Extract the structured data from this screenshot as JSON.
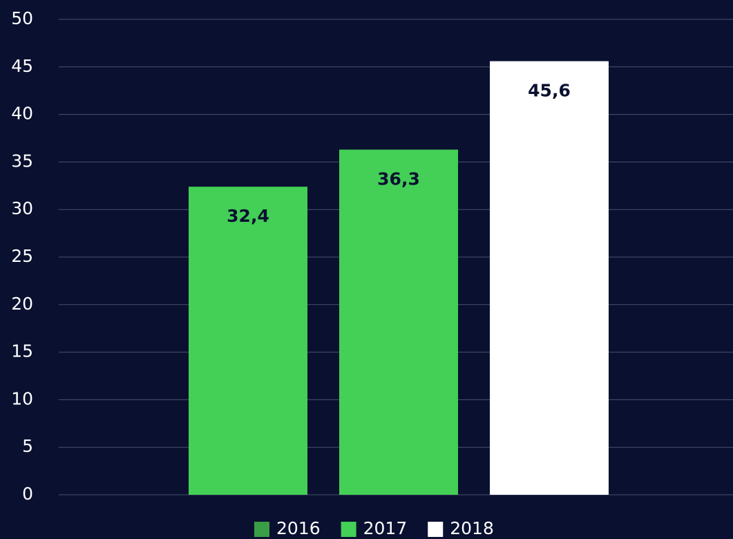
{
  "chart_data": {
    "type": "bar",
    "categories": [
      null,
      null,
      null
    ],
    "values": [
      32.4,
      36.3,
      45.6
    ],
    "value_labels": [
      "32,4",
      "36,3",
      "45,6"
    ],
    "colors": [
      "#44cf56",
      "#44cf56",
      "#ffffff"
    ],
    "legend": [
      {
        "name": "2016",
        "color": "#3a9e46"
      },
      {
        "name": "2017",
        "color": "#44cf56"
      },
      {
        "name": "2018",
        "color": "#ffffff"
      }
    ],
    "ylim": [
      0,
      50
    ],
    "yticks": [
      0,
      5,
      10,
      15,
      20,
      25,
      30,
      35,
      40,
      45,
      50
    ],
    "grid": true,
    "legend_position": "bottom"
  }
}
